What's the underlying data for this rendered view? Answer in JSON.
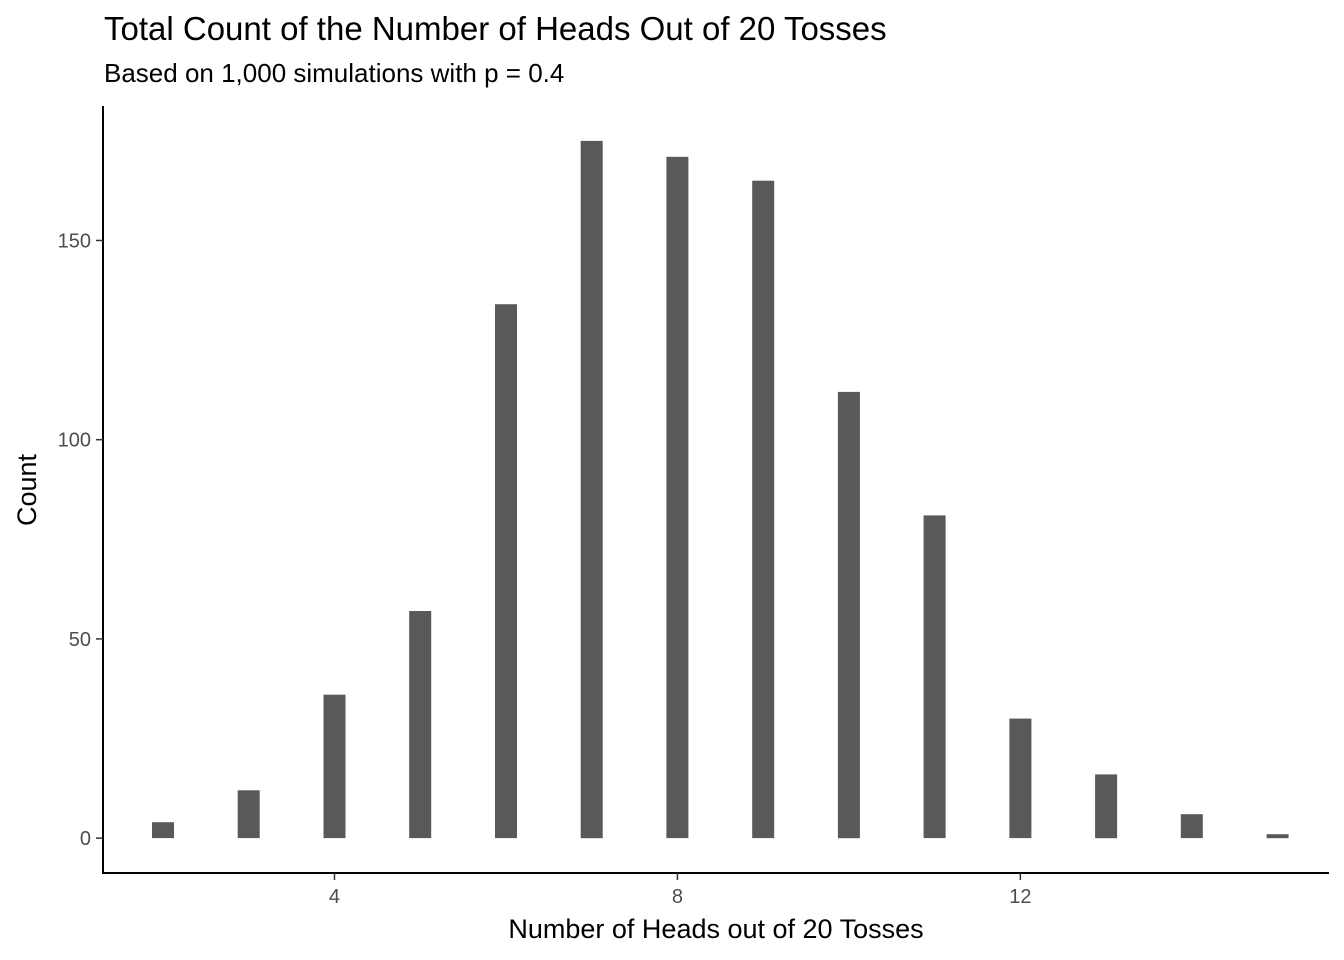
{
  "chart_data": {
    "type": "bar",
    "title": "Total Count of the Number of Heads Out of 20 Tosses",
    "subtitle": "Based on 1,000 simulations with p = 0.4",
    "xlabel": "Number of Heads out of 20 Tosses",
    "ylabel": "Count",
    "x": [
      2,
      3,
      4,
      5,
      6,
      7,
      8,
      9,
      10,
      11,
      12,
      13,
      14,
      15
    ],
    "values": [
      4,
      12,
      36,
      57,
      134,
      175,
      171,
      165,
      112,
      81,
      30,
      16,
      6,
      1
    ],
    "xlim": [
      1.3,
      15.6
    ],
    "ylim": [
      -8.75,
      183.75
    ],
    "xticks": [
      4,
      8,
      12
    ],
    "yticks": [
      0,
      50,
      100,
      150
    ],
    "bar_color": "#595959",
    "grid": false,
    "legend": "none"
  }
}
